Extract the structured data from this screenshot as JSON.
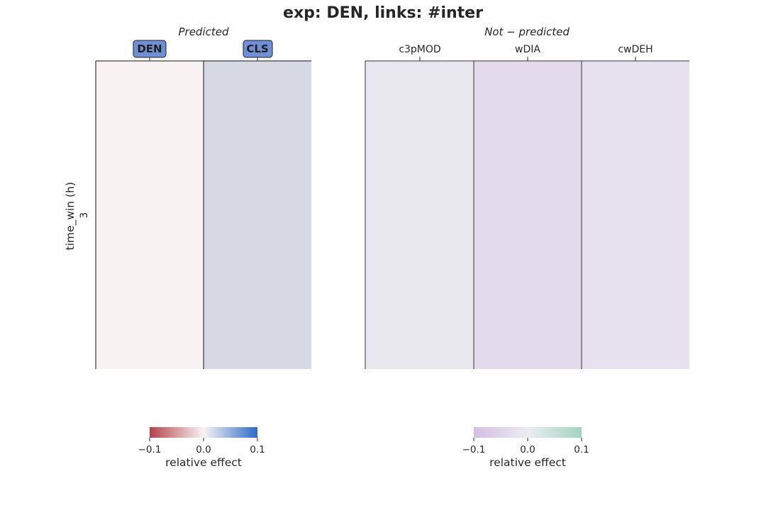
{
  "title": "exp: DEN, links: #inter",
  "chart_data": [
    {
      "type": "heatmap",
      "title": "Predicted",
      "ylabel": "time_win (h)",
      "y_categories": [
        "3"
      ],
      "x_categories": [
        "DEN",
        "CLS"
      ],
      "values": [
        [
          -0.005,
          0.03
        ]
      ],
      "highlighted_x_labels": [
        "DEN",
        "CLS"
      ],
      "highlight_color": "#6f8fd6",
      "colormap": [
        "#b2434a",
        "#f8f3f3",
        "#2f6cc4"
      ],
      "vmin": -0.1,
      "vmax": 0.1,
      "colorbar": {
        "label": "relative effect",
        "ticks": [
          "−0.1",
          "0.0",
          "0.1"
        ]
      }
    },
    {
      "type": "heatmap",
      "title": "Not − predicted",
      "y_categories": [
        "3"
      ],
      "x_categories": [
        "c3pMOD",
        "wDIA",
        "cwDEH"
      ],
      "values": [
        [
          -0.005,
          -0.02,
          -0.012
        ]
      ],
      "colormap": [
        "#d4bde6",
        "#ececf1",
        "#a3d4be"
      ],
      "vmin": -0.1,
      "vmax": 0.1,
      "colorbar": {
        "label": "relative effect",
        "ticks": [
          "−0.1",
          "0.0",
          "0.1"
        ]
      }
    }
  ],
  "cell_colors": {
    "left": [
      "#f8f2f2",
      "#d6d9e4"
    ],
    "right": [
      "#e8e7ee",
      "#e3dbeb",
      "#e8e2f0"
    ]
  }
}
